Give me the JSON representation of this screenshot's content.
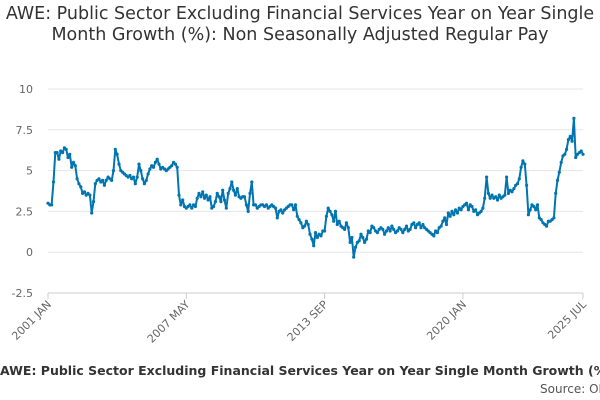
{
  "chart_data": {
    "type": "line",
    "title": "AWE: Public Sector Excluding Financial Services Year on Year Single Month Growth (%): Non Seasonally Adjusted Regular Pay",
    "x_start": "2001 JAN",
    "x_end": "2025 JUL",
    "x_ticks": [
      "2001 JAN",
      "2007 MAY",
      "2013 SEP",
      "2020 JAN",
      "2025 JUL"
    ],
    "y_ticks": [
      "10",
      "7.5",
      "5",
      "2.5",
      "0",
      "-2.5"
    ],
    "ylim": [
      -2.5,
      10
    ],
    "grid": "horizontal",
    "legend": "bottom",
    "line_color": "#0075b0",
    "series": [
      {
        "name": "AWE: Public Sector Excluding Financial Services Year on Year Single Month Growth (%): Non Seasonally Adjusted Regular Pay",
        "values": [
          [
            "2001-01",
            3.0
          ],
          [
            "2001-02",
            2.9
          ],
          [
            "2001-03",
            2.9
          ],
          [
            "2001-04",
            4.3
          ],
          [
            "2001-05",
            6.1
          ],
          [
            "2001-06",
            6.1
          ],
          [
            "2001-07",
            5.7
          ],
          [
            "2001-08",
            6.2
          ],
          [
            "2001-09",
            6.1
          ],
          [
            "2001-10",
            6.4
          ],
          [
            "2001-11",
            6.3
          ],
          [
            "2001-12",
            5.8
          ],
          [
            "2002-01",
            6.0
          ],
          [
            "2002-02",
            5.2
          ],
          [
            "2002-03",
            5.5
          ],
          [
            "2002-04",
            5.3
          ],
          [
            "2002-05",
            4.5
          ],
          [
            "2002-06",
            4.2
          ],
          [
            "2002-07",
            4.0
          ],
          [
            "2002-08",
            3.6
          ],
          [
            "2002-09",
            3.7
          ],
          [
            "2002-10",
            3.5
          ],
          [
            "2002-11",
            3.6
          ],
          [
            "2002-12",
            3.5
          ],
          [
            "2003-01",
            2.4
          ],
          [
            "2003-02",
            3.1
          ],
          [
            "2003-03",
            4.2
          ],
          [
            "2003-04",
            4.4
          ],
          [
            "2003-05",
            4.5
          ],
          [
            "2003-06",
            4.3
          ],
          [
            "2003-07",
            4.4
          ],
          [
            "2003-08",
            4.1
          ],
          [
            "2003-09",
            4.4
          ],
          [
            "2003-10",
            4.6
          ],
          [
            "2003-11",
            4.5
          ],
          [
            "2003-12",
            4.4
          ],
          [
            "2004-01",
            5.0
          ],
          [
            "2004-02",
            6.3
          ],
          [
            "2004-03",
            6.0
          ],
          [
            "2004-04",
            5.4
          ],
          [
            "2004-05",
            5.0
          ],
          [
            "2004-06",
            4.9
          ],
          [
            "2004-07",
            4.8
          ],
          [
            "2004-08",
            4.7
          ],
          [
            "2004-09",
            4.6
          ],
          [
            "2004-10",
            4.7
          ],
          [
            "2004-11",
            4.5
          ],
          [
            "2004-12",
            4.6
          ],
          [
            "2005-01",
            4.2
          ],
          [
            "2005-02",
            4.6
          ],
          [
            "2005-03",
            5.4
          ],
          [
            "2005-04",
            5.0
          ],
          [
            "2005-05",
            4.5
          ],
          [
            "2005-06",
            4.2
          ],
          [
            "2005-07",
            4.4
          ],
          [
            "2005-08",
            4.8
          ],
          [
            "2005-09",
            5.1
          ],
          [
            "2005-10",
            5.3
          ],
          [
            "2005-11",
            5.2
          ],
          [
            "2005-12",
            5.5
          ],
          [
            "2006-01",
            5.7
          ],
          [
            "2006-02",
            5.4
          ],
          [
            "2006-03",
            5.1
          ],
          [
            "2006-04",
            5.2
          ],
          [
            "2006-05",
            5.1
          ],
          [
            "2006-06",
            5.0
          ],
          [
            "2006-07",
            5.1
          ],
          [
            "2006-08",
            5.2
          ],
          [
            "2006-09",
            5.3
          ],
          [
            "2006-10",
            5.5
          ],
          [
            "2006-11",
            5.4
          ],
          [
            "2006-12",
            5.2
          ],
          [
            "2007-01",
            3.5
          ],
          [
            "2007-02",
            2.9
          ],
          [
            "2007-03",
            3.2
          ],
          [
            "2007-04",
            2.8
          ],
          [
            "2007-05",
            2.7
          ],
          [
            "2007-06",
            2.8
          ],
          [
            "2007-07",
            2.9
          ],
          [
            "2007-08",
            2.7
          ],
          [
            "2007-09",
            2.9
          ],
          [
            "2007-10",
            2.8
          ],
          [
            "2007-11",
            3.3
          ],
          [
            "2007-12",
            3.6
          ],
          [
            "2008-01",
            3.4
          ],
          [
            "2008-02",
            3.7
          ],
          [
            "2008-03",
            3.3
          ],
          [
            "2008-04",
            3.5
          ],
          [
            "2008-05",
            3.2
          ],
          [
            "2008-06",
            3.4
          ],
          [
            "2008-07",
            2.7
          ],
          [
            "2008-08",
            2.8
          ],
          [
            "2008-09",
            3.1
          ],
          [
            "2008-10",
            3.6
          ],
          [
            "2008-11",
            3.4
          ],
          [
            "2008-12",
            3.1
          ],
          [
            "2009-01",
            3.8
          ],
          [
            "2009-02",
            3.2
          ],
          [
            "2009-03",
            2.7
          ],
          [
            "2009-04",
            3.6
          ],
          [
            "2009-05",
            3.9
          ],
          [
            "2009-06",
            4.3
          ],
          [
            "2009-07",
            3.8
          ],
          [
            "2009-08",
            3.5
          ],
          [
            "2009-09",
            3.9
          ],
          [
            "2009-10",
            3.4
          ],
          [
            "2009-11",
            3.3
          ],
          [
            "2009-12",
            3.4
          ],
          [
            "2010-01",
            3.4
          ],
          [
            "2010-02",
            2.9
          ],
          [
            "2010-03",
            2.5
          ],
          [
            "2010-04",
            3.6
          ],
          [
            "2010-05",
            4.3
          ],
          [
            "2010-06",
            2.9
          ],
          [
            "2010-07",
            2.9
          ],
          [
            "2010-08",
            2.7
          ],
          [
            "2010-09",
            2.8
          ],
          [
            "2010-10",
            2.9
          ],
          [
            "2010-11",
            2.9
          ],
          [
            "2010-12",
            2.8
          ],
          [
            "2011-01",
            2.9
          ],
          [
            "2011-02",
            2.7
          ],
          [
            "2011-03",
            2.8
          ],
          [
            "2011-04",
            2.9
          ],
          [
            "2011-05",
            2.8
          ],
          [
            "2011-06",
            2.7
          ],
          [
            "2011-07",
            2.1
          ],
          [
            "2011-08",
            2.5
          ],
          [
            "2011-09",
            2.6
          ],
          [
            "2011-10",
            2.4
          ],
          [
            "2011-11",
            2.6
          ],
          [
            "2011-12",
            2.7
          ],
          [
            "2012-01",
            2.8
          ],
          [
            "2012-02",
            2.9
          ],
          [
            "2012-03",
            2.9
          ],
          [
            "2012-04",
            2.6
          ],
          [
            "2012-05",
            2.9
          ],
          [
            "2012-06",
            2.2
          ],
          [
            "2012-07",
            2.0
          ],
          [
            "2012-08",
            1.8
          ],
          [
            "2012-09",
            1.5
          ],
          [
            "2012-10",
            1.6
          ],
          [
            "2012-11",
            1.9
          ],
          [
            "2012-12",
            1.7
          ],
          [
            "2013-01",
            1.1
          ],
          [
            "2013-02",
            0.8
          ],
          [
            "2013-03",
            0.4
          ],
          [
            "2013-04",
            1.2
          ],
          [
            "2013-05",
            0.9
          ],
          [
            "2013-06",
            1.1
          ],
          [
            "2013-07",
            1.0
          ],
          [
            "2013-08",
            1.3
          ],
          [
            "2013-09",
            1.3
          ],
          [
            "2013-10",
            2.2
          ],
          [
            "2013-11",
            2.7
          ],
          [
            "2013-12",
            2.5
          ],
          [
            "2014-01",
            2.3
          ],
          [
            "2014-02",
            1.9
          ],
          [
            "2014-03",
            2.5
          ],
          [
            "2014-04",
            1.7
          ],
          [
            "2014-05",
            1.9
          ],
          [
            "2014-06",
            1.6
          ],
          [
            "2014-07",
            1.5
          ],
          [
            "2014-08",
            1.4
          ],
          [
            "2014-09",
            1.8
          ],
          [
            "2014-10",
            1.5
          ],
          [
            "2014-11",
            0.6
          ],
          [
            "2014-12",
            0.9
          ],
          [
            "2015-01",
            -0.3
          ],
          [
            "2015-02",
            0.3
          ],
          [
            "2015-03",
            0.6
          ],
          [
            "2015-04",
            0.7
          ],
          [
            "2015-05",
            1.1
          ],
          [
            "2015-06",
            0.9
          ],
          [
            "2015-07",
            0.6
          ],
          [
            "2015-08",
            0.8
          ],
          [
            "2015-09",
            1.3
          ],
          [
            "2015-10",
            1.2
          ],
          [
            "2015-11",
            1.6
          ],
          [
            "2015-12",
            1.5
          ],
          [
            "2016-01",
            1.3
          ],
          [
            "2016-02",
            1.2
          ],
          [
            "2016-03",
            1.4
          ],
          [
            "2016-04",
            1.5
          ],
          [
            "2016-05",
            1.4
          ],
          [
            "2016-06",
            1.1
          ],
          [
            "2016-07",
            1.3
          ],
          [
            "2016-08",
            1.5
          ],
          [
            "2016-09",
            1.3
          ],
          [
            "2016-10",
            1.6
          ],
          [
            "2016-11",
            1.4
          ],
          [
            "2016-12",
            1.2
          ],
          [
            "2017-01",
            1.3
          ],
          [
            "2017-02",
            1.5
          ],
          [
            "2017-03",
            1.4
          ],
          [
            "2017-04",
            1.2
          ],
          [
            "2017-05",
            1.4
          ],
          [
            "2017-06",
            1.6
          ],
          [
            "2017-07",
            1.3
          ],
          [
            "2017-08",
            1.4
          ],
          [
            "2017-09",
            1.7
          ],
          [
            "2017-10",
            1.8
          ],
          [
            "2017-11",
            1.5
          ],
          [
            "2017-12",
            1.7
          ],
          [
            "2018-01",
            1.8
          ],
          [
            "2018-02",
            1.5
          ],
          [
            "2018-03",
            1.7
          ],
          [
            "2018-04",
            1.5
          ],
          [
            "2018-05",
            1.4
          ],
          [
            "2018-06",
            1.3
          ],
          [
            "2018-07",
            1.2
          ],
          [
            "2018-08",
            1.1
          ],
          [
            "2018-09",
            1.0
          ],
          [
            "2018-10",
            1.3
          ],
          [
            "2018-11",
            1.2
          ],
          [
            "2018-12",
            1.5
          ],
          [
            "2019-01",
            1.6
          ],
          [
            "2019-02",
            1.9
          ],
          [
            "2019-03",
            2.1
          ],
          [
            "2019-04",
            1.7
          ],
          [
            "2019-05",
            2.4
          ],
          [
            "2019-06",
            2.2
          ],
          [
            "2019-07",
            2.5
          ],
          [
            "2019-08",
            2.3
          ],
          [
            "2019-09",
            2.6
          ],
          [
            "2019-10",
            2.4
          ],
          [
            "2019-11",
            2.7
          ],
          [
            "2019-12",
            2.6
          ],
          [
            "2020-01",
            2.8
          ],
          [
            "2020-02",
            2.9
          ],
          [
            "2020-03",
            3.0
          ],
          [
            "2020-04",
            2.6
          ],
          [
            "2020-05",
            2.9
          ],
          [
            "2020-06",
            2.8
          ],
          [
            "2020-07",
            2.5
          ],
          [
            "2020-08",
            2.6
          ],
          [
            "2020-09",
            2.3
          ],
          [
            "2020-10",
            2.4
          ],
          [
            "2020-11",
            2.5
          ],
          [
            "2020-12",
            2.7
          ],
          [
            "2021-01",
            3.3
          ],
          [
            "2021-02",
            4.6
          ],
          [
            "2021-03",
            3.6
          ],
          [
            "2021-04",
            3.3
          ],
          [
            "2021-05",
            3.5
          ],
          [
            "2021-06",
            3.3
          ],
          [
            "2021-07",
            3.4
          ],
          [
            "2021-08",
            3.2
          ],
          [
            "2021-09",
            3.5
          ],
          [
            "2021-10",
            3.3
          ],
          [
            "2021-11",
            3.4
          ],
          [
            "2021-12",
            3.5
          ],
          [
            "2022-01",
            4.6
          ],
          [
            "2022-02",
            3.6
          ],
          [
            "2022-03",
            3.8
          ],
          [
            "2022-04",
            3.7
          ],
          [
            "2022-05",
            3.9
          ],
          [
            "2022-06",
            4.1
          ],
          [
            "2022-07",
            4.2
          ],
          [
            "2022-08",
            4.5
          ],
          [
            "2022-09",
            5.2
          ],
          [
            "2022-10",
            5.6
          ],
          [
            "2022-11",
            5.4
          ],
          [
            "2022-12",
            4.1
          ],
          [
            "2023-01",
            2.3
          ],
          [
            "2023-02",
            2.6
          ],
          [
            "2023-03",
            2.9
          ],
          [
            "2023-04",
            2.8
          ],
          [
            "2023-05",
            2.6
          ],
          [
            "2023-06",
            2.9
          ],
          [
            "2023-07",
            2.1
          ],
          [
            "2023-08",
            2.0
          ],
          [
            "2023-09",
            1.8
          ],
          [
            "2023-10",
            1.7
          ],
          [
            "2023-11",
            1.6
          ],
          [
            "2023-12",
            1.9
          ],
          [
            "2024-01",
            1.9
          ],
          [
            "2024-02",
            2.0
          ],
          [
            "2024-03",
            2.1
          ],
          [
            "2024-04",
            3.6
          ],
          [
            "2024-05",
            4.4
          ],
          [
            "2024-06",
            4.9
          ],
          [
            "2024-07",
            5.5
          ],
          [
            "2024-08",
            5.9
          ],
          [
            "2024-09",
            6.0
          ],
          [
            "2024-10",
            6.3
          ],
          [
            "2024-11",
            6.9
          ],
          [
            "2024-12",
            7.1
          ],
          [
            "2025-01",
            6.8
          ],
          [
            "2025-02",
            8.2
          ],
          [
            "2025-03",
            5.8
          ],
          [
            "2025-04",
            6.0
          ],
          [
            "2025-05",
            6.1
          ],
          [
            "2025-06",
            6.2
          ],
          [
            "2025-07",
            6.0
          ]
        ]
      }
    ]
  },
  "legend_label": "AWE: Public Sector Excluding Financial Services Year on Year Single Month Growth (%): Non Seasonally Adjusted Regular Pay",
  "source_label": "Source: ONS"
}
